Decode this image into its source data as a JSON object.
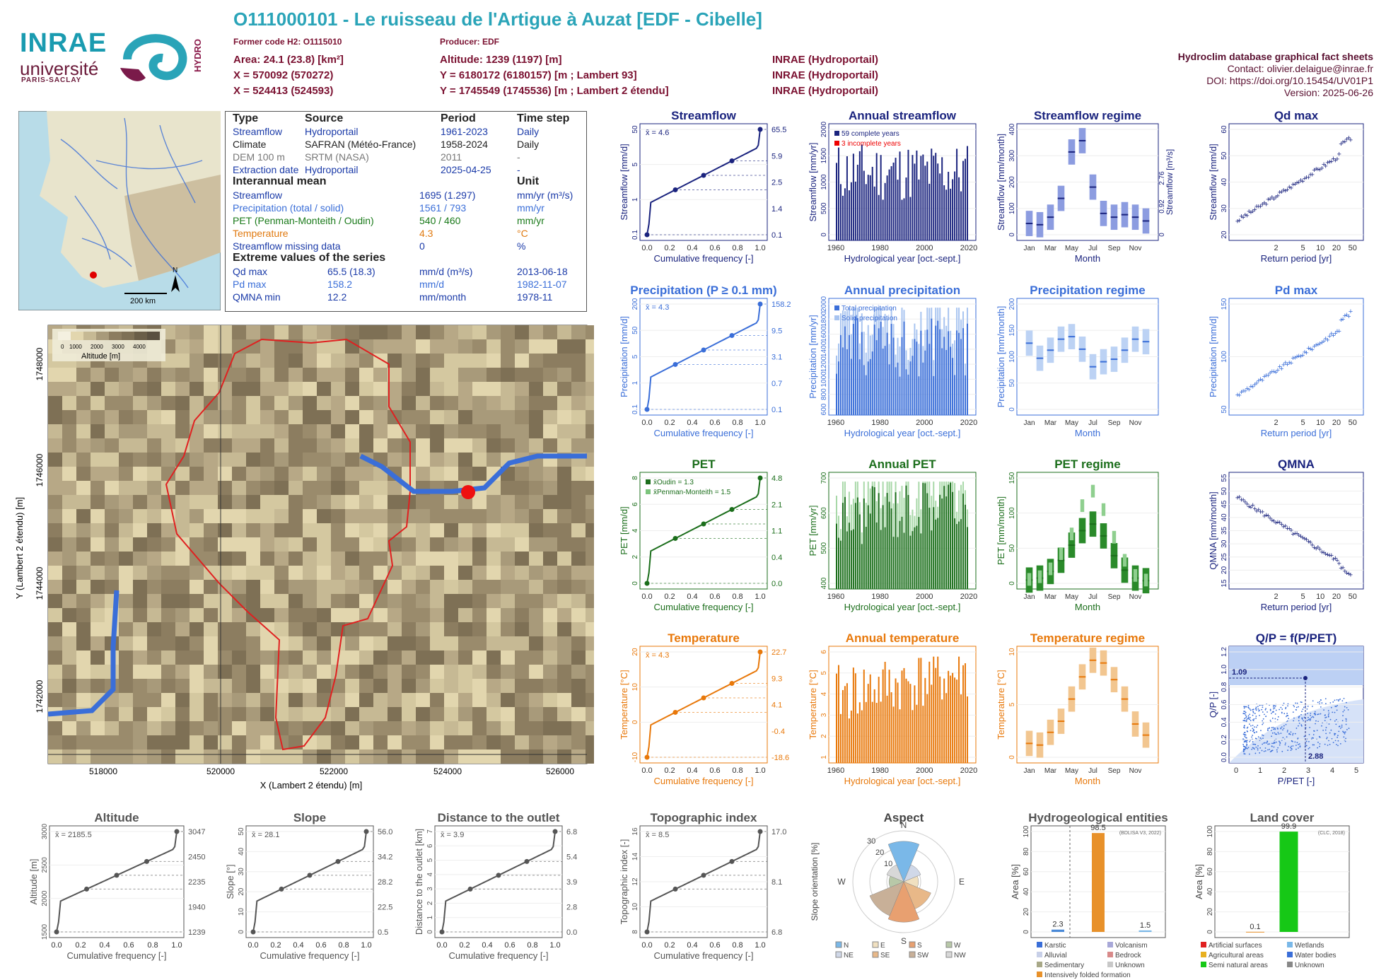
{
  "header": {
    "title": "O111000101 - Le ruisseau de l'Artigue à Auzat [EDF - Cibelle]",
    "former_code": "Former code H2: O1115010",
    "producer": "Producer: EDF",
    "area": "Area: 24.1 (23.8) [km²]",
    "x_l93": "X = 570092 (570272)",
    "x_l2": "X = 524413 (524593)",
    "altitude": "Altitude: 1239 (1197) [m]",
    "y_l93": "Y = 6180172 (6180157) [m ; Lambert 93]",
    "y_l2": "Y = 1745549 (1745536) [m ; Lambert 2 étendu]",
    "source1": "INRAE (Hydroportail)",
    "source2": "INRAE (Hydroportail)",
    "source3": "INRAE (Hydroportail)"
  },
  "meta": {
    "db": "Hydroclim database graphical fact sheets",
    "contact": "Contact: olivier.delaigue@inrae.fr",
    "doi": "DOI: https://doi.org/10.15454/UV01P1",
    "version": "Version: 2025-06-26"
  },
  "logos": {
    "inrae": "INRAE",
    "univ": "université",
    "ps": "PARIS-SACLAY",
    "hydro": "HYDRO"
  },
  "colors": {
    "streamflow": "#1a237e",
    "precip": "#3a6ed8",
    "pet": "#1b6e1b",
    "temp": "#e8780a",
    "topo": "#555555",
    "accent": "#2aa4b8"
  },
  "info": {
    "h_type": "Type",
    "h_source": "Source",
    "h_period": "Period",
    "h_step": "Time step",
    "rows": [
      {
        "type": "Streamflow",
        "source": "Hydroportail",
        "period": "1961-2023",
        "step": "Daily"
      },
      {
        "type": "Climate",
        "source": "SAFRAN (Météo-France)",
        "period": "1958-2024",
        "step": "Daily"
      },
      {
        "type": "DEM 100 m",
        "source": "SRTM (NASA)",
        "period": "2011",
        "step": "-"
      },
      {
        "type": "Extraction date",
        "source": "Hydroportail",
        "period": "2025-04-25",
        "step": "-"
      }
    ],
    "h_mean": "Interannual mean",
    "h_unit": "Unit",
    "means": [
      {
        "label": "Streamflow",
        "value": "1695 (1.297)",
        "unit": "mm/yr (m³/s)"
      },
      {
        "label": "Precipitation (total / solid)",
        "value": "1561 / 793",
        "unit": "mm/yr"
      },
      {
        "label": "PET (Penman-Monteith / Oudin)",
        "value": "540 / 460",
        "unit": "mm/yr"
      },
      {
        "label": "Temperature",
        "value": "4.3",
        "unit": "°C"
      },
      {
        "label": "Streamflow missing data",
        "value": "0",
        "unit": "%"
      }
    ],
    "h_extreme": "Extreme values of the series",
    "extremes": [
      {
        "label": "Qd max",
        "value": "65.5 (18.3)",
        "unit": "mm/d (m³/s)",
        "date": "2013-06-18"
      },
      {
        "label": "Pd max",
        "value": "158.2",
        "unit": "mm/d",
        "date": "1982-11-07"
      },
      {
        "label": "QMNA min",
        "value": "12.2",
        "unit": "mm/month",
        "date": "1978-11"
      }
    ]
  },
  "overview_map": {
    "scale": "200 km",
    "north": "N"
  },
  "basin_map": {
    "legend_title": "Altitude [m]",
    "legend_ticks": [
      "0",
      "1000",
      "2000",
      "3000",
      "4000"
    ],
    "xlabel": "X (Lambert 2 étendu) [m]",
    "ylabel": "Y (Lambert 2 étendu) [m]",
    "xticks": [
      "518000",
      "520000",
      "522000",
      "524000",
      "526000"
    ],
    "yticks": [
      "1742000",
      "1744000",
      "1746000",
      "1748000"
    ]
  },
  "chart_data": [
    {
      "id": "streamflow_cdf",
      "type": "line",
      "title": "Streamflow",
      "xlabel": "Cumulative frequency [-]",
      "ylabel": "Streamflow [mm/d]",
      "yscale": "log",
      "ylim": [
        0.1,
        65.5
      ],
      "mean_label": "x̄ = 4.6",
      "quantiles": [
        0.1,
        1.4,
        2.5,
        5.9,
        65.5
      ],
      "quantile_labels": [
        "0.1",
        "1.4",
        "2.5",
        "5.9",
        "65.5"
      ],
      "xticks": [
        "0.0",
        "0.2",
        "0.4",
        "0.6",
        "0.8",
        "1.0"
      ],
      "yticks": [
        "0.1",
        "1",
        "5",
        "50"
      ]
    },
    {
      "id": "annual_streamflow",
      "type": "bar",
      "title": "Annual streamflow",
      "xlabel": "Hydrological year [oct.-sept.]",
      "ylabel": "Streamflow [mm/yr]",
      "ylim": [
        0,
        2400
      ],
      "legend": [
        "59 complete years",
        "3 incomplete years"
      ],
      "xticks": [
        "1960",
        "1980",
        "2000",
        "2020"
      ],
      "yticks": [
        "0",
        "500",
        "1000",
        "1500",
        "2000"
      ]
    },
    {
      "id": "streamflow_regime",
      "type": "bar",
      "title": "Streamflow regime",
      "xlabel": "Month",
      "ylabel": "Streamflow [mm/month]",
      "y2label": "Streamflow [m³/s]",
      "months": [
        "Jan",
        "Feb",
        "Mar",
        "Apr",
        "May",
        "Jun",
        "Jul",
        "Aug",
        "Sep",
        "Oct",
        "Nov",
        "Dec"
      ],
      "values": [
        45,
        40,
        70,
        145,
        330,
        375,
        190,
        85,
        70,
        80,
        70,
        55
      ],
      "yticks": [
        "0",
        "100",
        "200",
        "300",
        "400"
      ],
      "y2ticks": [
        "0",
        "0.92",
        "2.76"
      ]
    },
    {
      "id": "qd_max",
      "type": "scatter",
      "title": "Qd max",
      "xlabel": "Return period [yr]",
      "ylabel": "Streamflow [mm/d]",
      "xticks": [
        "2",
        "5",
        "10",
        "20",
        "50"
      ],
      "yticks": [
        "20",
        "30",
        "40",
        "50",
        "60"
      ]
    },
    {
      "id": "precip_cdf",
      "type": "line",
      "title": "Precipitation (P ≥ 0.1 mm)",
      "xlabel": "Cumulative frequency [-]",
      "ylabel": "Precipitation [mm/d]",
      "yscale": "log",
      "mean_label": "x̄ = 4.3",
      "quantiles": [
        0.1,
        0.7,
        3.1,
        9.5,
        158.2
      ],
      "quantile_labels": [
        "0.1",
        "0.7",
        "3.1",
        "9.5",
        "158.2"
      ],
      "xticks": [
        "0.0",
        "0.2",
        "0.4",
        "0.6",
        "0.8",
        "1.0"
      ],
      "yticks": [
        "0.1",
        "1",
        "5",
        "50",
        "200"
      ]
    },
    {
      "id": "annual_precip",
      "type": "bar",
      "title": "Annual precipitation",
      "xlabel": "Hydrological year [oct.-sept.]",
      "ylabel": "Precipitation [mm/yr]",
      "legend": [
        "Total precipitation",
        "Solid precipitation"
      ],
      "xticks": [
        "1960",
        "1980",
        "2000",
        "2020"
      ],
      "yticks": [
        "600",
        "800",
        "1000",
        "1200",
        "1400",
        "1600",
        "1800",
        "2000"
      ]
    },
    {
      "id": "precip_regime",
      "type": "bar",
      "title": "Precipitation regime",
      "xlabel": "Month",
      "ylabel": "Precipitation [mm/month]",
      "months": [
        "Jan",
        "Feb",
        "Mar",
        "Apr",
        "May",
        "Jun",
        "Jul",
        "Aug",
        "Sep",
        "Oct",
        "Nov",
        "Dec"
      ],
      "values": [
        132,
        102,
        118,
        140,
        145,
        120,
        85,
        95,
        100,
        118,
        140,
        135
      ],
      "yticks": [
        "0",
        "50",
        "100",
        "150",
        "200"
      ]
    },
    {
      "id": "pd_max",
      "type": "scatter",
      "title": "Pd max",
      "xlabel": "Return period [yr]",
      "ylabel": "Precipitation [mm/d]",
      "xticks": [
        "2",
        "5",
        "10",
        "20",
        "50"
      ],
      "yticks": [
        "50",
        "100",
        "150"
      ]
    },
    {
      "id": "pet_cdf",
      "type": "line",
      "title": "PET",
      "xlabel": "Cumulative frequency [-]",
      "ylabel": "PET [mm/d]",
      "series": [
        {
          "name": "x̄Oudin = 1.3"
        },
        {
          "name": "x̄Penman-Monteith = 1.5"
        }
      ],
      "quantile_labels": [
        "0.0",
        "0.4",
        "1.1",
        "2.1",
        "4.8"
      ],
      "xticks": [
        "0.0",
        "0.2",
        "0.4",
        "0.6",
        "0.8",
        "1.0"
      ],
      "yticks": [
        "0",
        "2",
        "4",
        "6",
        "8"
      ]
    },
    {
      "id": "annual_pet",
      "type": "bar",
      "title": "Annual PET",
      "xlabel": "Hydrological year [oct.-sept.]",
      "ylabel": "PET [mm/yr]",
      "xticks": [
        "1960",
        "1980",
        "2000",
        "2020"
      ],
      "yticks": [
        "400",
        "500",
        "600",
        "700"
      ]
    },
    {
      "id": "pet_regime",
      "type": "bar",
      "title": "PET regime",
      "xlabel": "Month",
      "ylabel": "PET [mm/month]",
      "months": [
        "Jan",
        "Feb",
        "Mar",
        "Apr",
        "May",
        "Jun",
        "Jul",
        "Aug",
        "Sep",
        "Oct",
        "Nov",
        "Dec"
      ],
      "values": [
        5,
        8,
        18,
        35,
        58,
        80,
        90,
        72,
        42,
        20,
        8,
        4
      ],
      "values2": [
        6,
        10,
        22,
        45,
        75,
        118,
        140,
        112,
        70,
        35,
        12,
        5
      ],
      "yticks": [
        "0",
        "50",
        "100",
        "150"
      ]
    },
    {
      "id": "qmna",
      "type": "scatter",
      "title": "QMNA",
      "xlabel": "Return period [yr]",
      "ylabel": "QMNA [mm/month]",
      "xticks": [
        "2",
        "5",
        "10",
        "20",
        "50"
      ],
      "yticks": [
        "15",
        "20",
        "25",
        "30",
        "35",
        "40",
        "45",
        "50",
        "55"
      ]
    },
    {
      "id": "temp_cdf",
      "type": "line",
      "title": "Temperature",
      "xlabel": "Cumulative frequency [-]",
      "ylabel": "Temperature [°C]",
      "mean_label": "x̄ = 4.3",
      "quantiles": [
        -18.6,
        -0.4,
        4.1,
        9.3,
        22.7
      ],
      "quantile_labels": [
        "-18.6",
        "-0.4",
        "4.1",
        "9.3",
        "22.7"
      ],
      "xticks": [
        "0.0",
        "0.2",
        "0.4",
        "0.6",
        "0.8",
        "1.0"
      ],
      "yticks": [
        "-10",
        "0",
        "10",
        "20"
      ]
    },
    {
      "id": "annual_temp",
      "type": "bar",
      "title": "Annual temperature",
      "xlabel": "Hydrological year [oct.-sept.]",
      "ylabel": "Temperature [°C]",
      "xticks": [
        "1960",
        "1980",
        "2000",
        "2020"
      ],
      "yticks": [
        "1",
        "2",
        "3",
        "4",
        "5",
        "6"
      ]
    },
    {
      "id": "temp_regime",
      "type": "bar",
      "title": "Temperature regime",
      "xlabel": "Month",
      "ylabel": "Temperature [°C]",
      "months": [
        "Jan",
        "Feb",
        "Mar",
        "Apr",
        "May",
        "Jun",
        "Jul",
        "Aug",
        "Sep",
        "Oct",
        "Nov",
        "Dec"
      ],
      "values": [
        -2.5,
        -2.8,
        -0.5,
        1.5,
        5.5,
        9.5,
        12.5,
        12,
        9,
        5.5,
        1,
        -1
      ],
      "yticks": [
        "0",
        "5",
        "10"
      ]
    },
    {
      "id": "budyko",
      "type": "scatter",
      "title": "Q/P = f(P/PET)",
      "xlabel": "P/PET [-]",
      "ylabel": "Q/P [-]",
      "point": {
        "x": 2.88,
        "y": 1.09
      },
      "point_labels": [
        "1.09",
        "2.88"
      ],
      "xticks": [
        "0",
        "1",
        "2",
        "3",
        "4",
        "5"
      ],
      "yticks": [
        "0.0",
        "0.2",
        "0.4",
        "0.6",
        "0.8",
        "1.0",
        "1.2"
      ]
    },
    {
      "id": "altitude_cdf",
      "type": "line",
      "title": "Altitude",
      "xlabel": "Cumulative frequency [-]",
      "ylabel": "Altitude [m]",
      "mean_label": "x̄ = 2185.5",
      "quantiles": [
        1239,
        1940,
        2235,
        2450,
        3047
      ],
      "quantile_labels": [
        "1239",
        "1940",
        "2235",
        "2450",
        "3047"
      ],
      "xticks": [
        "0.0",
        "0.2",
        "0.4",
        "0.6",
        "0.8",
        "1.0"
      ],
      "yticks": [
        "1500",
        "2000",
        "2500",
        "3000"
      ]
    },
    {
      "id": "slope_cdf",
      "type": "line",
      "title": "Slope",
      "xlabel": "Cumulative frequency [-]",
      "ylabel": "Slope [°]",
      "mean_label": "x̄ = 28.1",
      "quantiles": [
        0.5,
        22.5,
        28.2,
        34.2,
        56.0
      ],
      "quantile_labels": [
        "0.5",
        "22.5",
        "28.2",
        "34.2",
        "56.0"
      ],
      "xticks": [
        "0.0",
        "0.2",
        "0.4",
        "0.6",
        "0.8",
        "1.0"
      ],
      "yticks": [
        "0",
        "10",
        "20",
        "30",
        "40",
        "50"
      ]
    },
    {
      "id": "distance_cdf",
      "type": "line",
      "title": "Distance to the outlet",
      "xlabel": "Cumulative frequency [-]",
      "ylabel": "Distance to the outlet [km]",
      "mean_label": "x̄ = 3.9",
      "quantiles": [
        0.0,
        2.8,
        3.9,
        5.4,
        6.8
      ],
      "quantile_labels": [
        "0.0",
        "2.8",
        "3.9",
        "5.4",
        "6.8"
      ],
      "xticks": [
        "0.0",
        "0.2",
        "0.4",
        "0.6",
        "0.8",
        "1.0"
      ],
      "yticks": [
        "0",
        "1",
        "2",
        "3",
        "4",
        "5",
        "6",
        "7"
      ]
    },
    {
      "id": "topo_cdf",
      "type": "line",
      "title": "Topographic index",
      "xlabel": "Cumulative frequency [-]",
      "ylabel": "Topographic index [-]",
      "mean_label": "x̄ = 8.5",
      "quantiles": [
        6.8,
        8.1,
        17.0
      ],
      "quantile_labels": [
        "6.8",
        "8.1",
        "17.0"
      ],
      "xticks": [
        "0.0",
        "0.2",
        "0.4",
        "0.6",
        "0.8",
        "1.0"
      ],
      "yticks": [
        "8",
        "10",
        "12",
        "14",
        "16"
      ]
    },
    {
      "id": "aspect",
      "type": "pie",
      "title": "Aspect",
      "ylabel": "Slope orientation [%]",
      "directions": [
        "N",
        "NE",
        "E",
        "SE",
        "S",
        "SW",
        "W",
        "NW"
      ],
      "values": [
        22,
        10,
        8,
        16,
        22,
        20,
        8,
        10
      ],
      "ring_labels": [
        "10",
        "20",
        "30"
      ],
      "legend": [
        "N",
        "NE",
        "E",
        "SE",
        "S",
        "SW",
        "W",
        "NW"
      ]
    },
    {
      "id": "hydrogeology",
      "type": "bar",
      "title": "Hydrogeological entities",
      "ylabel": "Area [%]",
      "source": "(BDLISA V3, 2022)",
      "values": [
        2.3,
        98.5,
        1.5
      ],
      "value_labels": [
        "2.3",
        "98.5",
        "1.5"
      ],
      "legend": [
        "Karstic",
        "Volcanism",
        "Alluvial",
        "Bedrock",
        "Sedimentary",
        "Unknown",
        "Intensively folded formation"
      ],
      "yticks": [
        "0",
        "20",
        "40",
        "60",
        "80",
        "100"
      ]
    },
    {
      "id": "land_cover",
      "type": "bar",
      "title": "Land cover",
      "ylabel": "Area [%]",
      "source": "(CLC, 2018)",
      "values": [
        0.1,
        99.9
      ],
      "value_labels": [
        "0.1",
        "99.9"
      ],
      "legend": [
        "Artificial surfaces",
        "Wetlands",
        "Agricultural areas",
        "Water bodies",
        "Semi natural areas",
        "Unknown"
      ],
      "yticks": [
        "0",
        "20",
        "40",
        "60",
        "80",
        "100"
      ]
    }
  ]
}
